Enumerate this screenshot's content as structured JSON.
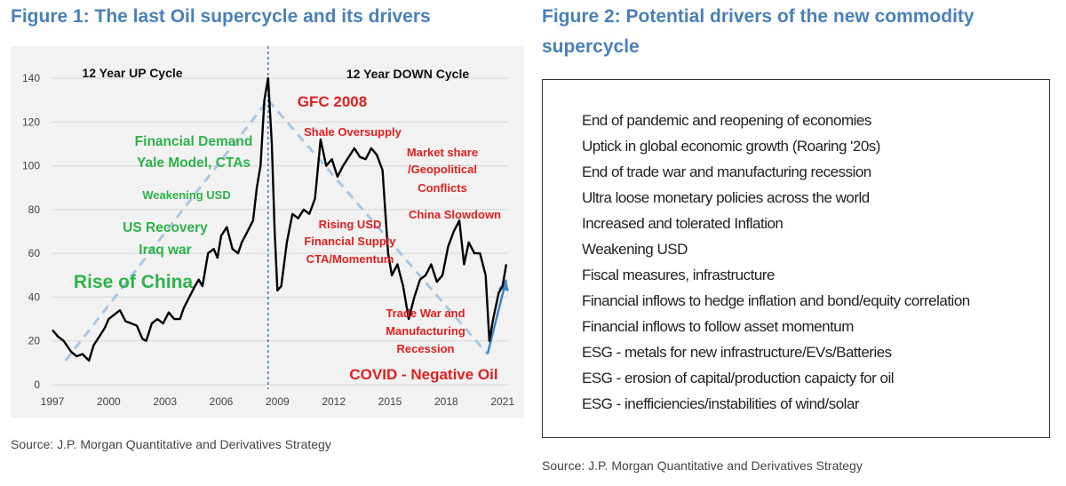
{
  "figure1": {
    "title": "Figure 1: The last Oil supercycle and its drivers",
    "source": "Source: J.P. Morgan Quantitative and Derivatives Strategy"
  },
  "figure2": {
    "title": "Figure 2: Potential drivers of the new commodity supercycle",
    "source": "Source: J.P. Morgan Quantitative and Derivatives Strategy",
    "drivers": [
      "End of pandemic and reopening of economies",
      "Uptick in global economic growth (Roaring '20s)",
      "End of trade war and manufacturing recession",
      "Ultra loose monetary policies across the world",
      "Increased and tolerated Inflation",
      "Weakening USD",
      "Fiscal measures, infrastructure",
      "Financial inflows to hedge inflation and bond/equity correlation",
      "Financial inflows to follow asset momentum",
      "ESG - metals for new infrastructure/EVs/Batteries",
      "ESG - erosion of capital/production capaicty for oil",
      "ESG - inefficiencies/instabilities of wind/solar"
    ]
  },
  "colors": {
    "title_blue": "#4a80b8",
    "line": "#000000",
    "trend_dashed": "#a9c7e4",
    "arrow_blue": "#3a84c8",
    "green_annotation": "#2db34a",
    "red_annotation": "#e02020",
    "panel_bg": "#f2f2f2"
  },
  "chart_data": {
    "type": "line",
    "title": "",
    "xlabel": "",
    "ylabel": "",
    "xlim": [
      1997,
      2021.3
    ],
    "ylim": [
      0,
      140
    ],
    "x_ticks": [
      "1997",
      "2000",
      "2003",
      "2006",
      "2009",
      "2012",
      "2015",
      "2018",
      "2021"
    ],
    "y_ticks": [
      "0",
      "20",
      "40",
      "60",
      "80",
      "100",
      "120",
      "140"
    ],
    "grid": "horizontal",
    "peak_marker_x": 2008.5,
    "series": [
      {
        "x": [
          1997.0,
          1997.3,
          1997.6,
          1998.0,
          1998.3,
          1998.6,
          1998.95,
          1999.2,
          1999.5,
          1999.8,
          2000.0,
          2000.3,
          2000.6,
          2000.9,
          2001.2,
          2001.5,
          2001.8,
          2002.0,
          2002.3,
          2002.6,
          2002.9,
          2003.2,
          2003.5,
          2003.8,
          2004.0,
          2004.3,
          2004.6,
          2004.8,
          2005.0,
          2005.3,
          2005.6,
          2005.8,
          2006.0,
          2006.3,
          2006.6,
          2006.9,
          2007.1,
          2007.4,
          2007.7,
          2007.9,
          2008.1,
          2008.3,
          2008.5,
          2008.7,
          2008.85,
          2009.0,
          2009.2,
          2009.5,
          2009.8,
          2010.1,
          2010.4,
          2010.7,
          2011.0,
          2011.3,
          2011.6,
          2011.9,
          2012.2,
          2012.5,
          2012.8,
          2013.1,
          2013.4,
          2013.7,
          2014.0,
          2014.3,
          2014.6,
          2014.9,
          2015.1,
          2015.4,
          2015.7,
          2016.0,
          2016.3,
          2016.6,
          2016.9,
          2017.2,
          2017.5,
          2017.8,
          2018.1,
          2018.4,
          2018.7,
          2018.95,
          2019.2,
          2019.5,
          2019.8,
          2020.1,
          2020.3,
          2020.5,
          2020.8,
          2021.0,
          2021.2
        ],
        "y": [
          25,
          22,
          20,
          15,
          13,
          14,
          11,
          18,
          22,
          26,
          30,
          32,
          34,
          29,
          28,
          27,
          21,
          20,
          28,
          30,
          28,
          33,
          30,
          30,
          35,
          40,
          45,
          48,
          45,
          60,
          62,
          58,
          68,
          72,
          62,
          60,
          65,
          70,
          75,
          90,
          100,
          130,
          140,
          110,
          70,
          43,
          45,
          65,
          78,
          76,
          80,
          78,
          85,
          112,
          100,
          103,
          95,
          100,
          104,
          108,
          104,
          103,
          108,
          105,
          98,
          60,
          50,
          55,
          45,
          30,
          40,
          48,
          50,
          55,
          47,
          50,
          63,
          70,
          75,
          55,
          65,
          60,
          60,
          50,
          20,
          30,
          42,
          45,
          55
        ]
      }
    ],
    "annotations": [
      {
        "text": "12 Year UP Cycle",
        "color": "black"
      },
      {
        "text": "12 Year DOWN Cycle",
        "color": "black"
      },
      {
        "text": "GFC 2008",
        "color": "red"
      },
      {
        "text": "Financial Demand",
        "color": "green"
      },
      {
        "text": "Yale Model, CTAs",
        "color": "green"
      },
      {
        "text": "Weakening USD",
        "color": "green"
      },
      {
        "text": "US Recovery",
        "color": "green"
      },
      {
        "text": "Iraq war",
        "color": "green"
      },
      {
        "text": "Rise of China",
        "color": "green"
      },
      {
        "text": "Shale Oversupply",
        "color": "red"
      },
      {
        "text": "Market share",
        "color": "red"
      },
      {
        "text": "/Geopolitical",
        "color": "red"
      },
      {
        "text": "Conflicts",
        "color": "red"
      },
      {
        "text": "China Slowdown",
        "color": "red"
      },
      {
        "text": "Rising USD",
        "color": "red"
      },
      {
        "text": "Financial Supply",
        "color": "red"
      },
      {
        "text": "CTA/Momentum",
        "color": "red"
      },
      {
        "text": "Trade War and",
        "color": "red"
      },
      {
        "text": "Manufacturing",
        "color": "red"
      },
      {
        "text": "Recession",
        "color": "red"
      },
      {
        "text": "COVID - Negative Oil",
        "color": "red"
      }
    ]
  }
}
